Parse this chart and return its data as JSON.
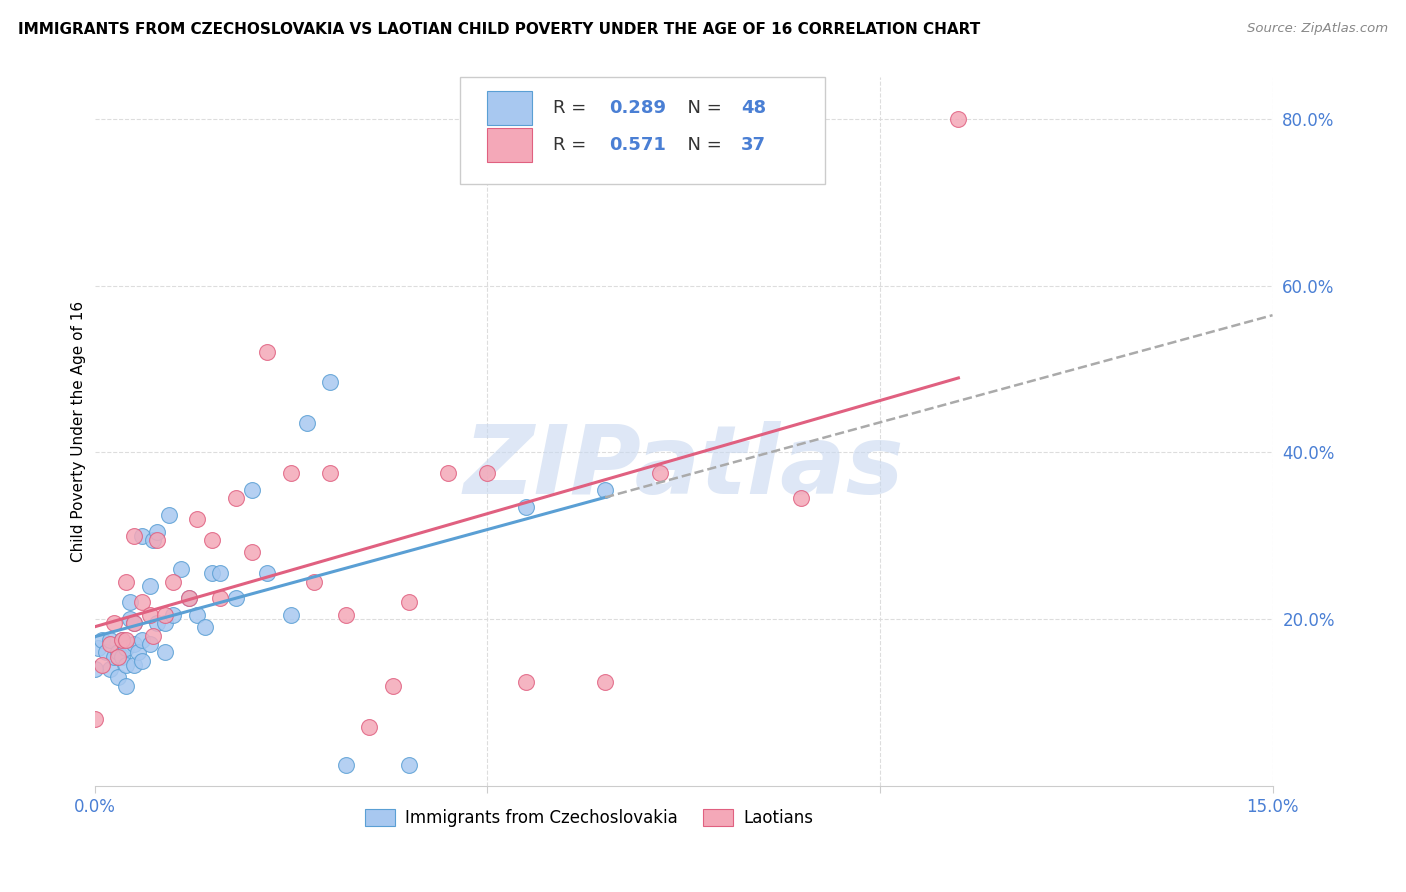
{
  "title": "IMMIGRANTS FROM CZECHOSLOVAKIA VS LAOTIAN CHILD POVERTY UNDER THE AGE OF 16 CORRELATION CHART",
  "source": "Source: ZipAtlas.com",
  "ylabel": "Child Poverty Under the Age of 16",
  "xlim": [
    0.0,
    0.15
  ],
  "ylim": [
    0.0,
    0.85
  ],
  "yticks": [
    0.0,
    0.2,
    0.4,
    0.6,
    0.8
  ],
  "ytick_labels": [
    "",
    "20.0%",
    "40.0%",
    "60.0%",
    "80.0%"
  ],
  "xtick_positions": [
    0.0,
    0.05,
    0.1,
    0.15
  ],
  "xtick_labels": [
    "0.0%",
    "",
    "",
    "15.0%"
  ],
  "blue_R": 0.289,
  "blue_N": 48,
  "pink_R": 0.571,
  "pink_N": 37,
  "blue_color": "#a8c8f0",
  "pink_color": "#f4a8b8",
  "blue_edge_color": "#5a9fd4",
  "pink_edge_color": "#e06080",
  "blue_line_color": "#5a9fd4",
  "pink_line_color": "#e06080",
  "dashed_line_color": "#aaaaaa",
  "label_color": "#4a7fd4",
  "watermark_color": "#c8d8f0",
  "watermark": "ZIPatlas",
  "legend_label_blue": "Immigrants from Czechoslovakia",
  "legend_label_pink": "Laotians",
  "blue_x": [
    0.0005,
    0.001,
    0.0015,
    0.002,
    0.002,
    0.0025,
    0.003,
    0.003,
    0.0035,
    0.0035,
    0.004,
    0.004,
    0.004,
    0.0045,
    0.0045,
    0.005,
    0.005,
    0.005,
    0.0055,
    0.006,
    0.006,
    0.006,
    0.007,
    0.007,
    0.0075,
    0.008,
    0.008,
    0.009,
    0.009,
    0.0095,
    0.01,
    0.011,
    0.012,
    0.013,
    0.014,
    0.015,
    0.016,
    0.018,
    0.02,
    0.022,
    0.025,
    0.027,
    0.03,
    0.032,
    0.04,
    0.055,
    0.065,
    0.0
  ],
  "blue_y": [
    0.165,
    0.175,
    0.16,
    0.14,
    0.175,
    0.155,
    0.13,
    0.16,
    0.155,
    0.175,
    0.12,
    0.145,
    0.165,
    0.2,
    0.22,
    0.145,
    0.17,
    0.195,
    0.16,
    0.15,
    0.175,
    0.3,
    0.17,
    0.24,
    0.295,
    0.195,
    0.305,
    0.16,
    0.195,
    0.325,
    0.205,
    0.26,
    0.225,
    0.205,
    0.19,
    0.255,
    0.255,
    0.225,
    0.355,
    0.255,
    0.205,
    0.435,
    0.485,
    0.025,
    0.025,
    0.335,
    0.355,
    0.14
  ],
  "pink_x": [
    0.0,
    0.001,
    0.002,
    0.0025,
    0.003,
    0.0035,
    0.004,
    0.004,
    0.005,
    0.005,
    0.006,
    0.007,
    0.0075,
    0.008,
    0.009,
    0.01,
    0.012,
    0.013,
    0.015,
    0.016,
    0.018,
    0.02,
    0.022,
    0.025,
    0.028,
    0.03,
    0.032,
    0.035,
    0.038,
    0.04,
    0.045,
    0.05,
    0.055,
    0.065,
    0.072,
    0.09,
    0.11
  ],
  "pink_y": [
    0.08,
    0.145,
    0.17,
    0.195,
    0.155,
    0.175,
    0.175,
    0.245,
    0.195,
    0.3,
    0.22,
    0.205,
    0.18,
    0.295,
    0.205,
    0.245,
    0.225,
    0.32,
    0.295,
    0.225,
    0.345,
    0.28,
    0.52,
    0.375,
    0.245,
    0.375,
    0.205,
    0.07,
    0.12,
    0.22,
    0.375,
    0.375,
    0.125,
    0.125,
    0.375,
    0.345,
    0.8
  ],
  "grid_color": "#dddddd",
  "spine_color": "#cccccc"
}
